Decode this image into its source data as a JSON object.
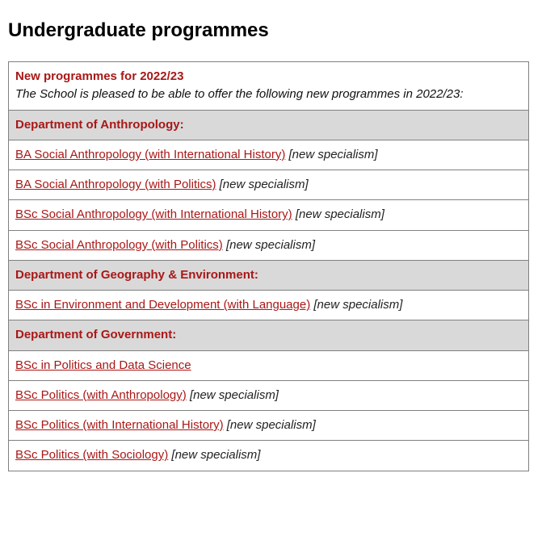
{
  "page": {
    "heading": "Undergraduate programmes",
    "intro": {
      "title": "New programmes for 2022/23",
      "text": "The School is pleased to be able to offer the following new programmes in 2022/23:"
    },
    "colors": {
      "accent": "#a81817",
      "border": "#808080",
      "dept_bg": "#d9d9d9",
      "background": "#ffffff",
      "text": "#000000"
    },
    "typography": {
      "heading_fontsize": 24,
      "body_fontsize": 15,
      "font_family": "Arial, Helvetica, sans-serif"
    }
  },
  "departments": [
    {
      "name": "Department of Anthropology:",
      "programmes": [
        {
          "title": "BA Social Anthropology (with International History)",
          "note": "[new specialism]"
        },
        {
          "title": "BA Social Anthropology (with Politics)",
          "note": "[new specialism]"
        },
        {
          "title": "BSc Social Anthropology (with International History)",
          "note": "[new specialism]"
        },
        {
          "title": "BSc Social Anthropology (with Politics)",
          "note": "[new specialism]"
        }
      ]
    },
    {
      "name": "Department of Geography & Environment:",
      "programmes": [
        {
          "title": "BSc in Environment and Development (with Language)",
          "note": "[new specialism]"
        }
      ]
    },
    {
      "name": "Department of Government:",
      "programmes": [
        {
          "title": "BSc in Politics and Data Science",
          "note": ""
        },
        {
          "title": "BSc Politics (with Anthropology)",
          "note": "[new specialism]"
        },
        {
          "title": "BSc Politics (with International History)",
          "note": "[new specialism]"
        },
        {
          "title": "BSc Politics (with Sociology)",
          "note": "[new specialism]"
        }
      ]
    }
  ]
}
